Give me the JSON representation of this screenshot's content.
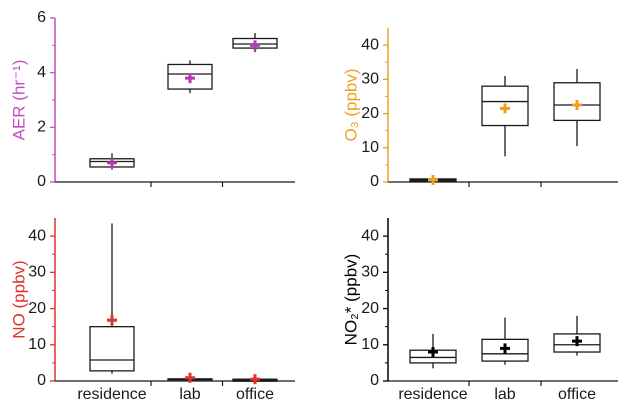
{
  "chart_data": [
    {
      "type": "box",
      "id": "aer",
      "ylabel": "AER (hr⁻¹)",
      "ylabel_color": "#c24fc2",
      "axis_color": "#c24fc2",
      "marker_color": "#b03ab0",
      "ylim": [
        0,
        6
      ],
      "yticks": [
        0,
        2,
        4,
        6
      ],
      "categories": [
        "residence",
        "lab",
        "office"
      ],
      "boxes": [
        {
          "category": "residence",
          "whisker_low": 0.45,
          "q1": 0.55,
          "median": 0.75,
          "q3": 0.85,
          "whisker_high": 1.05,
          "mean": 0.7
        },
        {
          "category": "lab",
          "whisker_low": 3.25,
          "q1": 3.4,
          "median": 3.95,
          "q3": 4.3,
          "whisker_high": 4.45,
          "mean": 3.8
        },
        {
          "category": "office",
          "whisker_low": 4.75,
          "q1": 4.9,
          "median": 5.05,
          "q3": 5.25,
          "whisker_high": 5.45,
          "mean": 5.0
        }
      ]
    },
    {
      "type": "box",
      "id": "o3",
      "ylabel": "O₃ (ppbv)",
      "ylabel_color": "#f0a020",
      "axis_color": "#f0a020",
      "marker_color": "#f0a020",
      "ylim": [
        0,
        45
      ],
      "yticks": [
        0,
        10,
        20,
        30,
        40
      ],
      "categories": [
        "residence",
        "lab",
        "office"
      ],
      "boxes": [
        {
          "category": "residence",
          "whisker_low": 0.2,
          "q1": 0.3,
          "median": 0.6,
          "q3": 0.9,
          "whisker_high": 1.1,
          "mean": 0.6
        },
        {
          "category": "lab",
          "whisker_low": 7.5,
          "q1": 16.5,
          "median": 23.5,
          "q3": 28,
          "whisker_high": 31,
          "mean": 21.5
        },
        {
          "category": "office",
          "whisker_low": 10.5,
          "q1": 18,
          "median": 22.5,
          "q3": 29,
          "whisker_high": 33,
          "mean": 22.5
        }
      ]
    },
    {
      "type": "box",
      "id": "no",
      "ylabel": "NO (ppbv)",
      "ylabel_color": "#e0332b",
      "axis_color": "#e0332b",
      "marker_color": "#e0332b",
      "ylim": [
        0,
        45
      ],
      "yticks": [
        0,
        10,
        20,
        30,
        40
      ],
      "categories": [
        "residence",
        "lab",
        "office"
      ],
      "boxes": [
        {
          "category": "residence",
          "whisker_low": 2,
          "q1": 2.8,
          "median": 5.8,
          "q3": 15,
          "whisker_high": 43.5,
          "mean": 16.8
        },
        {
          "category": "lab",
          "whisker_low": 0.1,
          "q1": 0.2,
          "median": 0.4,
          "q3": 0.6,
          "whisker_high": 0.9,
          "mean": 0.9
        },
        {
          "category": "office",
          "whisker_low": 0.05,
          "q1": 0.1,
          "median": 0.3,
          "q3": 0.5,
          "whisker_high": 0.8,
          "mean": 0.5
        }
      ]
    },
    {
      "type": "box",
      "id": "no2",
      "ylabel": "NO₂* (ppbv)",
      "ylabel_color": "#000000",
      "axis_color": "#000000",
      "marker_color": "#000000",
      "ylim": [
        0,
        45
      ],
      "yticks": [
        0,
        10,
        20,
        30,
        40
      ],
      "categories": [
        "residence",
        "lab",
        "office"
      ],
      "boxes": [
        {
          "category": "residence",
          "whisker_low": 3.5,
          "q1": 5,
          "median": 6.5,
          "q3": 8.5,
          "whisker_high": 13,
          "mean": 8
        },
        {
          "category": "lab",
          "whisker_low": 4.5,
          "q1": 5.5,
          "median": 7.5,
          "q3": 11.5,
          "whisker_high": 17.5,
          "mean": 9
        },
        {
          "category": "office",
          "whisker_low": 7,
          "q1": 8,
          "median": 10,
          "q3": 13,
          "whisker_high": 18,
          "mean": 11
        }
      ]
    }
  ]
}
